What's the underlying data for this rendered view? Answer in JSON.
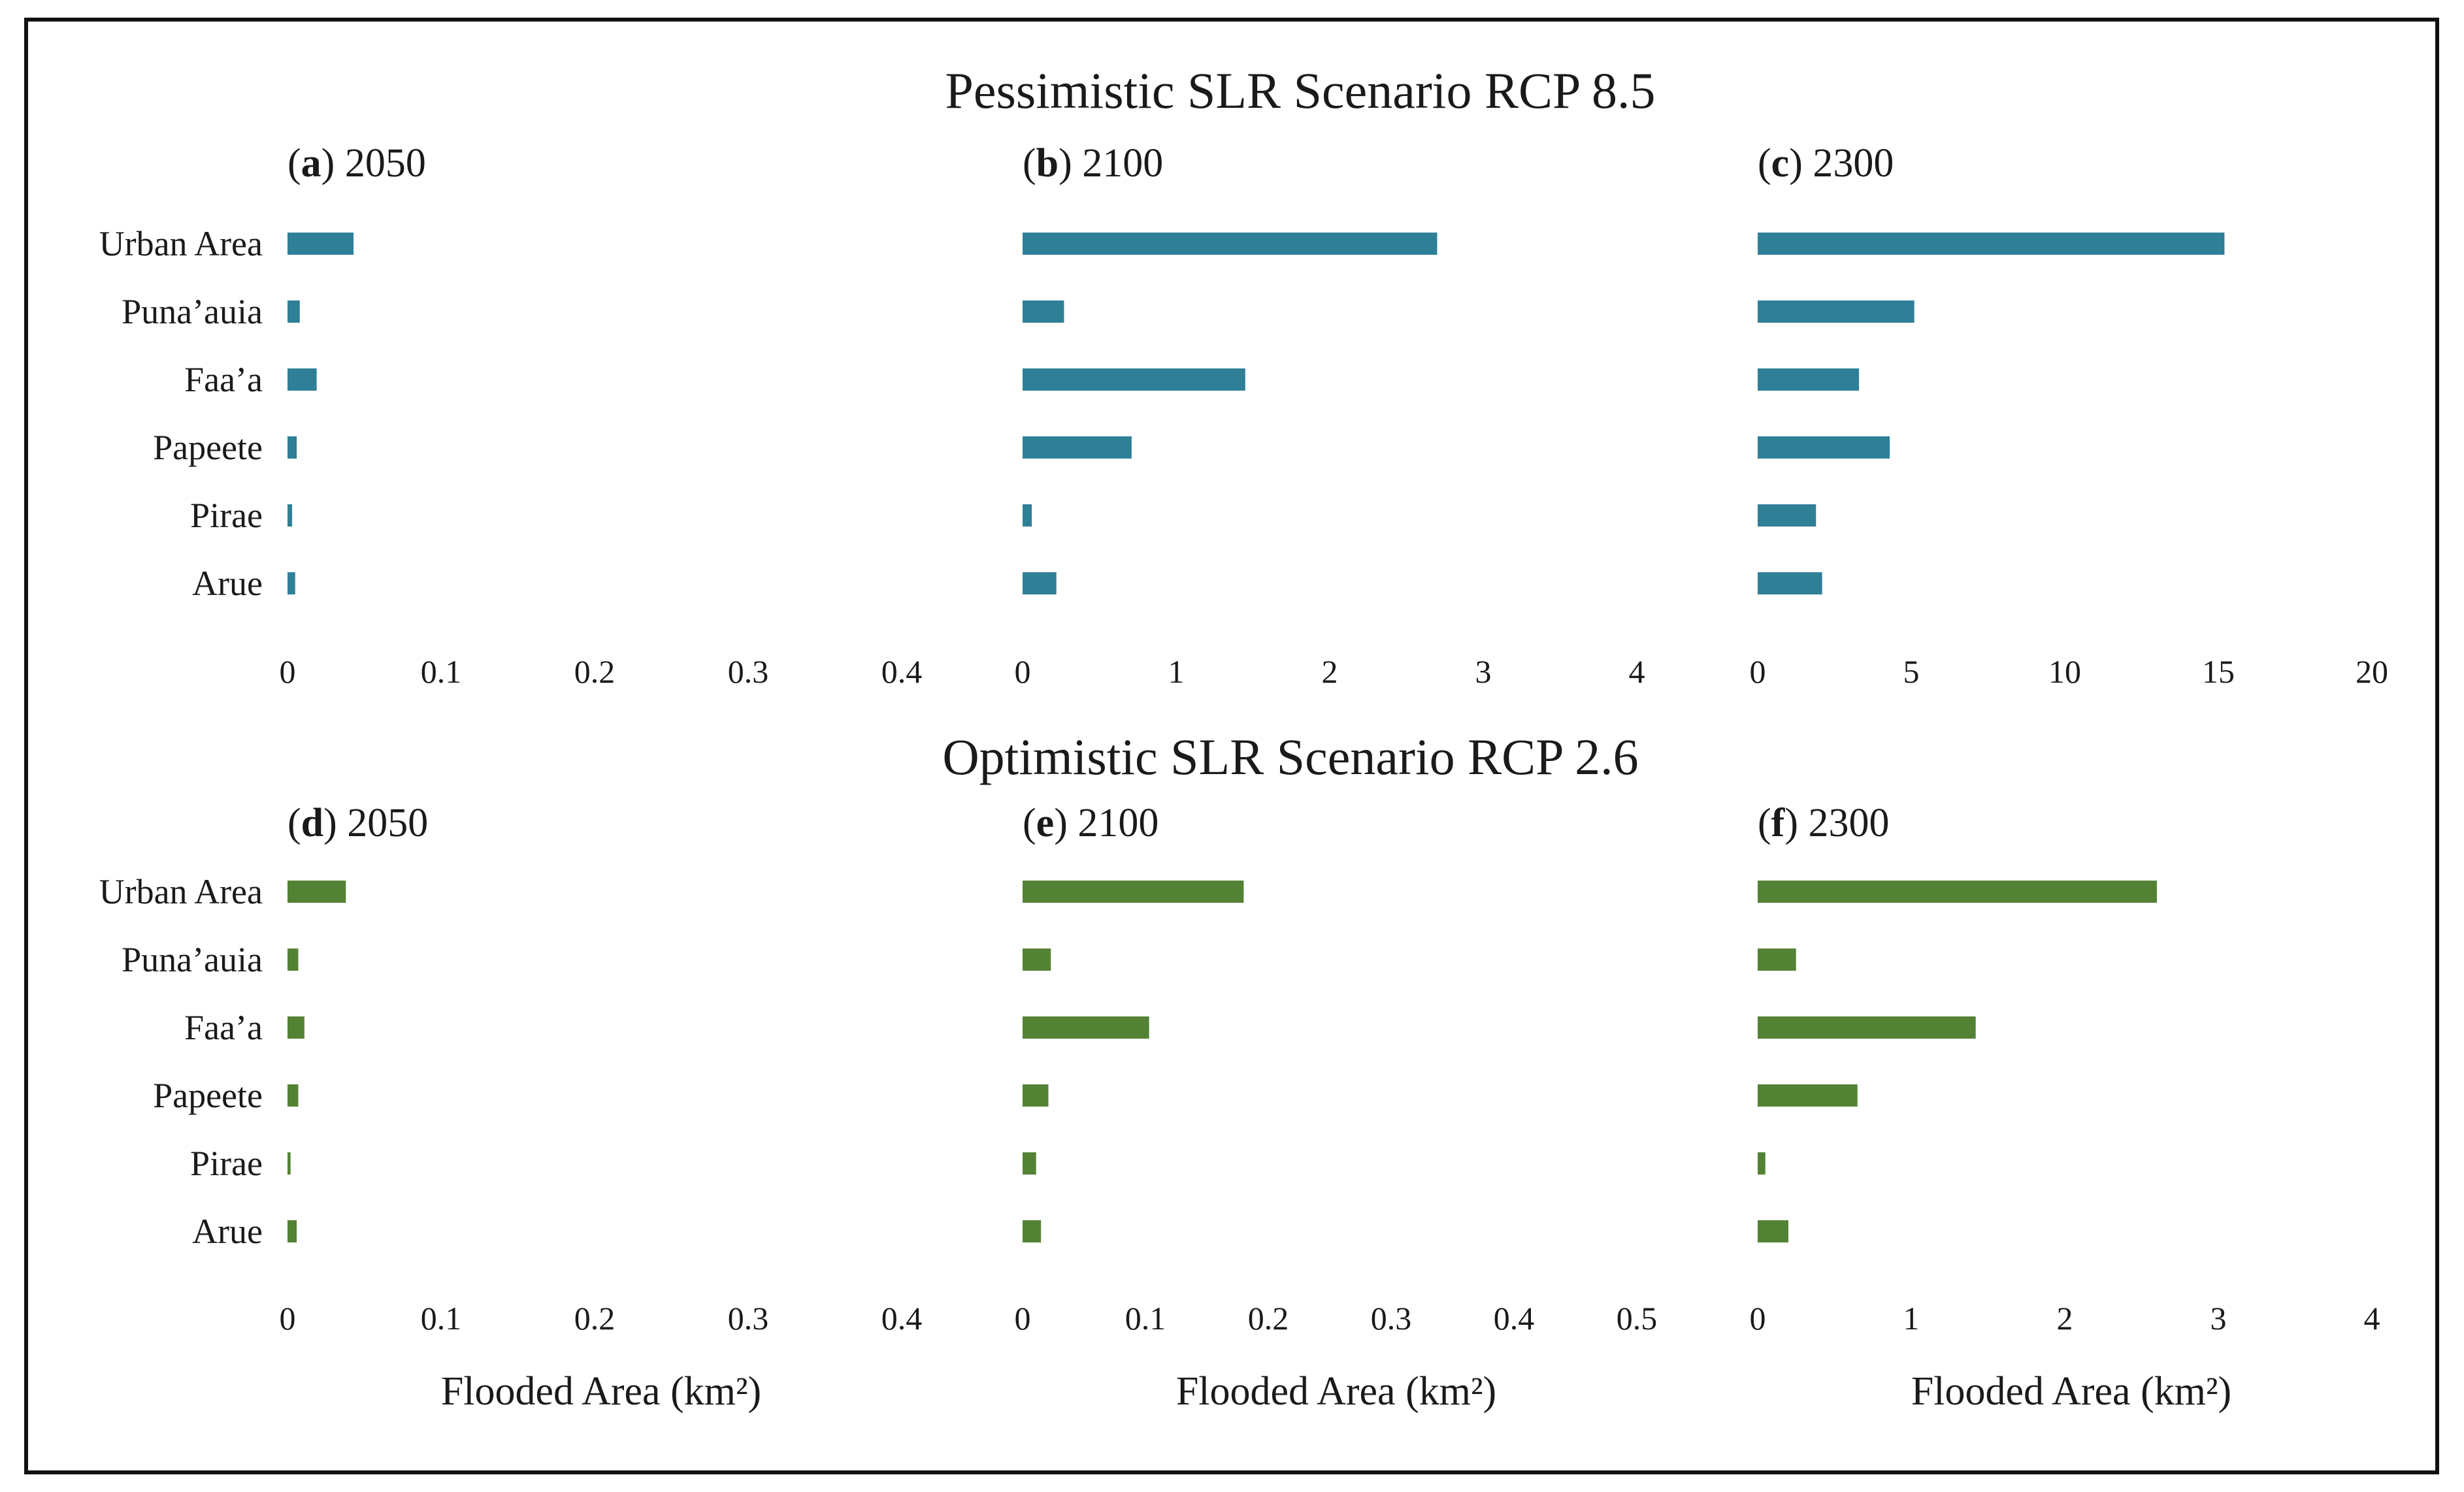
{
  "sections": [
    {
      "title": "Pessimistic SLR Scenario RCP 8.5"
    },
    {
      "title": "Optimistic SLR Scenario RCP 2.6"
    }
  ],
  "chart_data": [
    {
      "type": "bar",
      "orientation": "horizontal",
      "section": 0,
      "letter": "a",
      "title": "2050",
      "categories": [
        "Urban Area",
        "Puna’auia",
        "Faa’a",
        "Papeete",
        "Pirae",
        "Arue"
      ],
      "values": [
        0.043,
        0.008,
        0.019,
        0.006,
        0.003,
        0.005
      ],
      "xlim": [
        0,
        0.4
      ],
      "xticks": [
        "0",
        "0.1",
        "0.2",
        "0.3",
        "0.4"
      ],
      "xlabel": "",
      "color": "#2f7f97",
      "grid": false,
      "legend": "none"
    },
    {
      "type": "bar",
      "orientation": "horizontal",
      "section": 0,
      "letter": "b",
      "title": "2100",
      "categories": [
        "Urban Area",
        "Puna’auia",
        "Faa’a",
        "Papeete",
        "Pirae",
        "Arue"
      ],
      "values": [
        2.7,
        0.27,
        1.45,
        0.71,
        0.06,
        0.22
      ],
      "xlim": [
        0,
        4
      ],
      "xticks": [
        "0",
        "1",
        "2",
        "3",
        "4"
      ],
      "xlabel": "",
      "color": "#2f7f97",
      "grid": false,
      "legend": "none"
    },
    {
      "type": "bar",
      "orientation": "horizontal",
      "section": 0,
      "letter": "c",
      "title": "2300",
      "categories": [
        "Urban Area",
        "Puna’auia",
        "Faa’a",
        "Papeete",
        "Pirae",
        "Arue"
      ],
      "values": [
        15.2,
        5.1,
        3.3,
        4.3,
        1.9,
        2.1
      ],
      "xlim": [
        0,
        20
      ],
      "xticks": [
        "0",
        "5",
        "10",
        "15",
        "20"
      ],
      "xlabel": "",
      "color": "#2f7f97",
      "grid": false,
      "legend": "none"
    },
    {
      "type": "bar",
      "orientation": "horizontal",
      "section": 1,
      "letter": "d",
      "title": "2050",
      "categories": [
        "Urban Area",
        "Puna’auia",
        "Faa’a",
        "Papeete",
        "Pirae",
        "Arue"
      ],
      "values": [
        0.038,
        0.007,
        0.011,
        0.007,
        0.002,
        0.006
      ],
      "xlim": [
        0,
        0.4
      ],
      "xticks": [
        "0",
        "0.1",
        "0.2",
        "0.3",
        "0.4"
      ],
      "xlabel": "Flooded Area (km²)",
      "color": "#548235",
      "grid": false,
      "legend": "none"
    },
    {
      "type": "bar",
      "orientation": "horizontal",
      "section": 1,
      "letter": "e",
      "title": "2100",
      "categories": [
        "Urban Area",
        "Puna’auia",
        "Faa’a",
        "Papeete",
        "Pirae",
        "Arue"
      ],
      "values": [
        0.18,
        0.023,
        0.103,
        0.021,
        0.011,
        0.015
      ],
      "xlim": [
        0,
        0.5
      ],
      "xticks": [
        "0",
        "0.1",
        "0.2",
        "0.3",
        "0.4",
        "0.5"
      ],
      "xlabel": "Flooded Area (km²)",
      "color": "#548235",
      "grid": false,
      "legend": "none"
    },
    {
      "type": "bar",
      "orientation": "horizontal",
      "section": 1,
      "letter": "f",
      "title": "2300",
      "categories": [
        "Urban Area",
        "Puna’auia",
        "Faa’a",
        "Papeete",
        "Pirae",
        "Arue"
      ],
      "values": [
        2.6,
        0.25,
        1.42,
        0.65,
        0.05,
        0.2
      ],
      "xlim": [
        0,
        4
      ],
      "xticks": [
        "0",
        "1",
        "2",
        "3",
        "4"
      ],
      "xlabel": "Flooded Area (km²)",
      "color": "#548235",
      "grid": false,
      "legend": "none"
    }
  ]
}
